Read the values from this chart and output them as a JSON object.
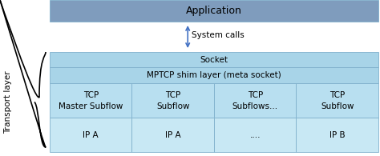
{
  "bg_color": "#ffffff",
  "app_box": {
    "label": "Application",
    "color": "#7f9cbd",
    "text_color": "#000000"
  },
  "system_calls_label": "System calls",
  "socket_box": {
    "label": "Socket",
    "color": "#a8d4e8"
  },
  "mptcp_box": {
    "label": "MPTCP shim layer (meta socket)",
    "color": "#a8d4e8"
  },
  "tcp_boxes": [
    {
      "line1": "TCP",
      "line2": "Master Subflow",
      "color": "#b8dff0"
    },
    {
      "line1": "TCP",
      "line2": "Subflow",
      "color": "#b8dff0"
    },
    {
      "line1": "TCP",
      "line2": "Subflows...",
      "color": "#b8dff0"
    },
    {
      "line1": "TCP",
      "line2": "Subflow",
      "color": "#b8dff0"
    }
  ],
  "ip_boxes": [
    {
      "label": "IP A",
      "color": "#c8e8f4"
    },
    {
      "label": "IP A",
      "color": "#c8e8f4"
    },
    {
      "label": "....",
      "color": "#c8e8f4"
    },
    {
      "label": "IP B",
      "color": "#c8e8f4"
    }
  ],
  "transport_layer_label": "Transport layer",
  "arrow_color": "#4472c4",
  "font_size": 7.5,
  "title_font_size": 9,
  "edge_color": "#7fb0cc",
  "edge_lw": 0.6
}
